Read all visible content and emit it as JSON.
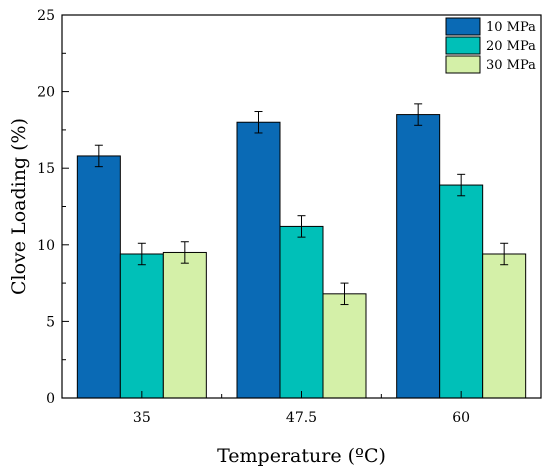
{
  "chart_data": {
    "type": "bar",
    "title": "",
    "xlabel": "Temperature (ºC)",
    "ylabel": "Clove Loading (%)",
    "categories": [
      "35",
      "47.5",
      "60"
    ],
    "ylim": [
      0,
      25
    ],
    "yticks": [
      0,
      5,
      10,
      15,
      20,
      25
    ],
    "grid": false,
    "legend_position": "top-right",
    "error_bars": true,
    "series": [
      {
        "name": "10 MPa",
        "color": "#0a6ab5",
        "values": [
          15.8,
          18.0,
          18.5
        ],
        "errors": [
          0.7,
          0.7,
          0.7
        ]
      },
      {
        "name": "20 MPa",
        "color": "#00c0b8",
        "values": [
          9.4,
          11.2,
          13.9
        ],
        "errors": [
          0.7,
          0.7,
          0.7
        ]
      },
      {
        "name": "30 MPa",
        "color": "#d4f0a8",
        "values": [
          9.5,
          6.8,
          9.4
        ],
        "errors": [
          0.7,
          0.7,
          0.7
        ]
      }
    ]
  }
}
